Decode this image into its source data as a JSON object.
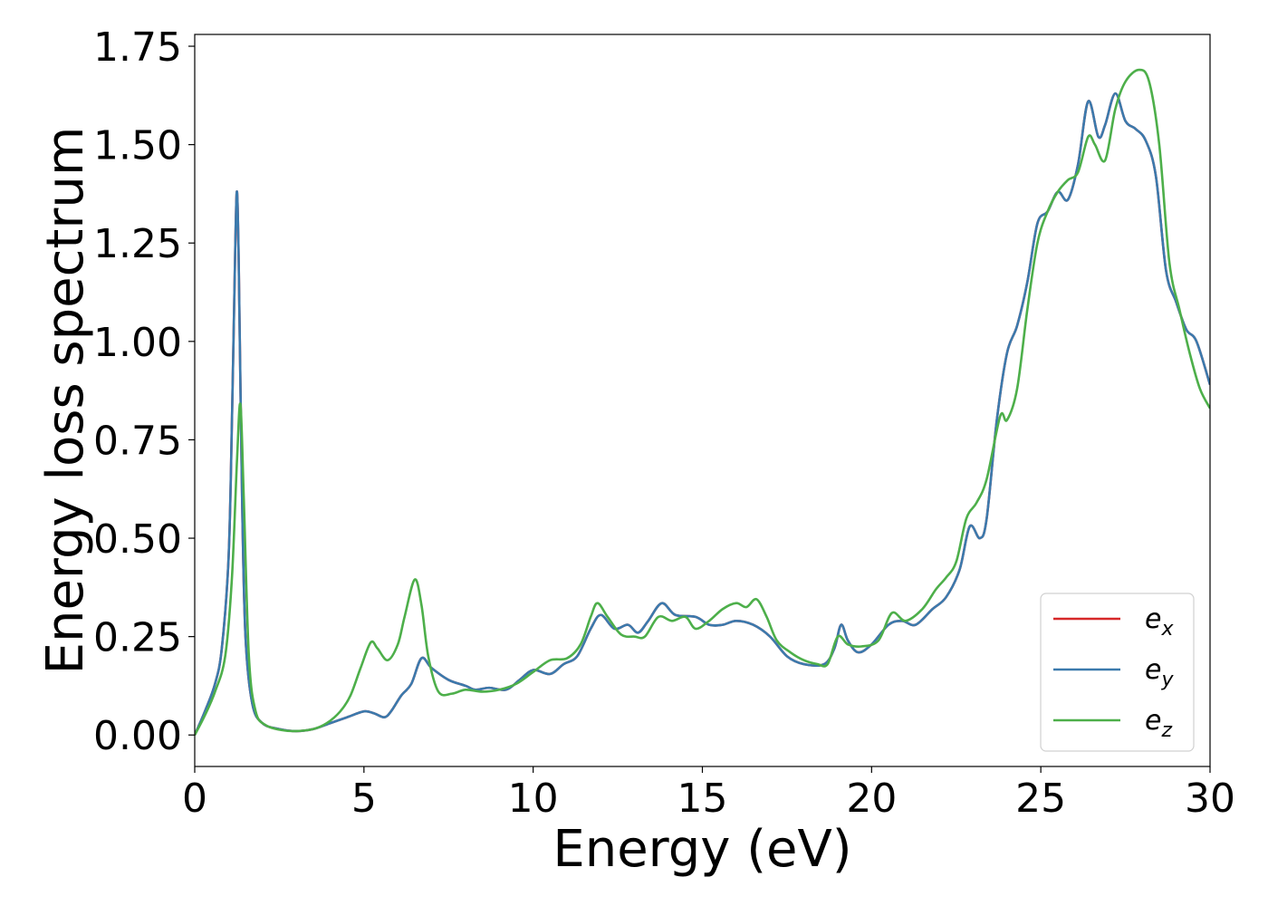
{
  "chart_data": {
    "type": "line",
    "title": "",
    "xlabel": "Energy (eV)",
    "ylabel": "Energy loss spectrum",
    "xlim": [
      0,
      30
    ],
    "ylim": [
      -0.08,
      1.78
    ],
    "xticks": [
      0,
      5,
      10,
      15,
      20,
      25,
      30
    ],
    "xtick_labels": [
      "0",
      "5",
      "10",
      "15",
      "20",
      "25",
      "30"
    ],
    "yticks": [
      0,
      0.25,
      0.5,
      0.75,
      1.0,
      1.25,
      1.5,
      1.75
    ],
    "ytick_labels": [
      "0.00",
      "0.25",
      "0.50",
      "0.75",
      "1.00",
      "1.25",
      "1.50",
      "1.75"
    ],
    "grid": false,
    "legend_position": "bottom-right",
    "series": [
      {
        "name": "e_x",
        "base": "e",
        "sub": "x",
        "color": "#d62728",
        "points": [
          [
            0,
            0.0
          ],
          [
            0.3,
            0.06
          ],
          [
            0.6,
            0.13
          ],
          [
            0.8,
            0.22
          ],
          [
            1.0,
            0.45
          ],
          [
            1.1,
            0.8
          ],
          [
            1.2,
            1.25
          ],
          [
            1.25,
            1.38
          ],
          [
            1.3,
            1.2
          ],
          [
            1.4,
            0.6
          ],
          [
            1.5,
            0.25
          ],
          [
            1.7,
            0.08
          ],
          [
            2.0,
            0.03
          ],
          [
            2.5,
            0.015
          ],
          [
            3.0,
            0.01
          ],
          [
            3.5,
            0.015
          ],
          [
            4.0,
            0.03
          ],
          [
            4.5,
            0.045
          ],
          [
            5.0,
            0.06
          ],
          [
            5.3,
            0.055
          ],
          [
            5.6,
            0.045
          ],
          [
            5.8,
            0.06
          ],
          [
            6.1,
            0.1
          ],
          [
            6.4,
            0.13
          ],
          [
            6.7,
            0.195
          ],
          [
            7.0,
            0.17
          ],
          [
            7.5,
            0.14
          ],
          [
            8.0,
            0.125
          ],
          [
            8.3,
            0.115
          ],
          [
            8.7,
            0.12
          ],
          [
            9.2,
            0.115
          ],
          [
            9.6,
            0.14
          ],
          [
            10.0,
            0.165
          ],
          [
            10.5,
            0.155
          ],
          [
            10.9,
            0.18
          ],
          [
            11.3,
            0.2
          ],
          [
            11.7,
            0.27
          ],
          [
            12.0,
            0.305
          ],
          [
            12.4,
            0.27
          ],
          [
            12.8,
            0.28
          ],
          [
            13.1,
            0.26
          ],
          [
            13.4,
            0.29
          ],
          [
            13.8,
            0.335
          ],
          [
            14.2,
            0.305
          ],
          [
            14.8,
            0.3
          ],
          [
            15.2,
            0.28
          ],
          [
            15.6,
            0.28
          ],
          [
            16.0,
            0.29
          ],
          [
            16.5,
            0.28
          ],
          [
            17.0,
            0.25
          ],
          [
            17.5,
            0.2
          ],
          [
            18.0,
            0.18
          ],
          [
            18.6,
            0.18
          ],
          [
            18.9,
            0.22
          ],
          [
            19.1,
            0.28
          ],
          [
            19.3,
            0.24
          ],
          [
            19.6,
            0.21
          ],
          [
            20.0,
            0.23
          ],
          [
            20.5,
            0.28
          ],
          [
            20.9,
            0.29
          ],
          [
            21.3,
            0.28
          ],
          [
            21.8,
            0.32
          ],
          [
            22.2,
            0.35
          ],
          [
            22.6,
            0.42
          ],
          [
            22.9,
            0.53
          ],
          [
            23.2,
            0.5
          ],
          [
            23.4,
            0.55
          ],
          [
            23.7,
            0.8
          ],
          [
            24.0,
            0.97
          ],
          [
            24.3,
            1.04
          ],
          [
            24.6,
            1.15
          ],
          [
            24.9,
            1.3
          ],
          [
            25.2,
            1.33
          ],
          [
            25.5,
            1.38
          ],
          [
            25.8,
            1.36
          ],
          [
            26.1,
            1.45
          ],
          [
            26.4,
            1.61
          ],
          [
            26.7,
            1.52
          ],
          [
            26.9,
            1.55
          ],
          [
            27.2,
            1.63
          ],
          [
            27.5,
            1.56
          ],
          [
            27.8,
            1.54
          ],
          [
            28.1,
            1.51
          ],
          [
            28.4,
            1.42
          ],
          [
            28.7,
            1.18
          ],
          [
            29.0,
            1.1
          ],
          [
            29.3,
            1.03
          ],
          [
            29.6,
            1.0
          ],
          [
            30.0,
            0.89
          ]
        ]
      },
      {
        "name": "e_y",
        "base": "e",
        "sub": "y",
        "color": "#3b7aad",
        "points": [
          [
            0,
            0.0
          ],
          [
            0.3,
            0.06
          ],
          [
            0.6,
            0.13
          ],
          [
            0.8,
            0.22
          ],
          [
            1.0,
            0.45
          ],
          [
            1.1,
            0.8
          ],
          [
            1.2,
            1.25
          ],
          [
            1.25,
            1.38
          ],
          [
            1.3,
            1.2
          ],
          [
            1.4,
            0.6
          ],
          [
            1.5,
            0.25
          ],
          [
            1.7,
            0.08
          ],
          [
            2.0,
            0.03
          ],
          [
            2.5,
            0.015
          ],
          [
            3.0,
            0.01
          ],
          [
            3.5,
            0.015
          ],
          [
            4.0,
            0.03
          ],
          [
            4.5,
            0.045
          ],
          [
            5.0,
            0.06
          ],
          [
            5.3,
            0.055
          ],
          [
            5.6,
            0.045
          ],
          [
            5.8,
            0.06
          ],
          [
            6.1,
            0.1
          ],
          [
            6.4,
            0.13
          ],
          [
            6.7,
            0.195
          ],
          [
            7.0,
            0.17
          ],
          [
            7.5,
            0.14
          ],
          [
            8.0,
            0.125
          ],
          [
            8.3,
            0.115
          ],
          [
            8.7,
            0.12
          ],
          [
            9.2,
            0.115
          ],
          [
            9.6,
            0.14
          ],
          [
            10.0,
            0.165
          ],
          [
            10.5,
            0.155
          ],
          [
            10.9,
            0.18
          ],
          [
            11.3,
            0.2
          ],
          [
            11.7,
            0.27
          ],
          [
            12.0,
            0.305
          ],
          [
            12.4,
            0.27
          ],
          [
            12.8,
            0.28
          ],
          [
            13.1,
            0.26
          ],
          [
            13.4,
            0.29
          ],
          [
            13.8,
            0.335
          ],
          [
            14.2,
            0.305
          ],
          [
            14.8,
            0.3
          ],
          [
            15.2,
            0.28
          ],
          [
            15.6,
            0.28
          ],
          [
            16.0,
            0.29
          ],
          [
            16.5,
            0.28
          ],
          [
            17.0,
            0.25
          ],
          [
            17.5,
            0.2
          ],
          [
            18.0,
            0.18
          ],
          [
            18.6,
            0.18
          ],
          [
            18.9,
            0.22
          ],
          [
            19.1,
            0.28
          ],
          [
            19.3,
            0.24
          ],
          [
            19.6,
            0.21
          ],
          [
            20.0,
            0.23
          ],
          [
            20.5,
            0.28
          ],
          [
            20.9,
            0.29
          ],
          [
            21.3,
            0.28
          ],
          [
            21.8,
            0.32
          ],
          [
            22.2,
            0.35
          ],
          [
            22.6,
            0.42
          ],
          [
            22.9,
            0.53
          ],
          [
            23.2,
            0.5
          ],
          [
            23.4,
            0.55
          ],
          [
            23.7,
            0.8
          ],
          [
            24.0,
            0.97
          ],
          [
            24.3,
            1.04
          ],
          [
            24.6,
            1.15
          ],
          [
            24.9,
            1.3
          ],
          [
            25.2,
            1.33
          ],
          [
            25.5,
            1.38
          ],
          [
            25.8,
            1.36
          ],
          [
            26.1,
            1.45
          ],
          [
            26.4,
            1.61
          ],
          [
            26.7,
            1.52
          ],
          [
            26.9,
            1.55
          ],
          [
            27.2,
            1.63
          ],
          [
            27.5,
            1.56
          ],
          [
            27.8,
            1.54
          ],
          [
            28.1,
            1.51
          ],
          [
            28.4,
            1.42
          ],
          [
            28.7,
            1.18
          ],
          [
            29.0,
            1.1
          ],
          [
            29.3,
            1.03
          ],
          [
            29.6,
            1.0
          ],
          [
            30.0,
            0.89
          ]
        ]
      },
      {
        "name": "e_z",
        "base": "e",
        "sub": "z",
        "color": "#4daf4a",
        "points": [
          [
            0,
            0.0
          ],
          [
            0.3,
            0.05
          ],
          [
            0.6,
            0.11
          ],
          [
            0.9,
            0.2
          ],
          [
            1.1,
            0.4
          ],
          [
            1.25,
            0.7
          ],
          [
            1.35,
            0.84
          ],
          [
            1.45,
            0.6
          ],
          [
            1.6,
            0.2
          ],
          [
            1.8,
            0.06
          ],
          [
            2.1,
            0.025
          ],
          [
            2.6,
            0.012
          ],
          [
            3.0,
            0.01
          ],
          [
            3.5,
            0.015
          ],
          [
            3.9,
            0.03
          ],
          [
            4.3,
            0.06
          ],
          [
            4.6,
            0.1
          ],
          [
            4.9,
            0.17
          ],
          [
            5.2,
            0.235
          ],
          [
            5.4,
            0.22
          ],
          [
            5.7,
            0.19
          ],
          [
            6.0,
            0.23
          ],
          [
            6.2,
            0.3
          ],
          [
            6.5,
            0.395
          ],
          [
            6.7,
            0.33
          ],
          [
            6.9,
            0.2
          ],
          [
            7.2,
            0.11
          ],
          [
            7.6,
            0.105
          ],
          [
            8.0,
            0.115
          ],
          [
            8.5,
            0.11
          ],
          [
            9.0,
            0.115
          ],
          [
            9.5,
            0.13
          ],
          [
            10.0,
            0.16
          ],
          [
            10.5,
            0.19
          ],
          [
            11.0,
            0.195
          ],
          [
            11.4,
            0.23
          ],
          [
            11.7,
            0.3
          ],
          [
            11.9,
            0.335
          ],
          [
            12.2,
            0.3
          ],
          [
            12.6,
            0.255
          ],
          [
            13.0,
            0.25
          ],
          [
            13.3,
            0.25
          ],
          [
            13.7,
            0.3
          ],
          [
            14.1,
            0.29
          ],
          [
            14.5,
            0.3
          ],
          [
            14.8,
            0.27
          ],
          [
            15.2,
            0.29
          ],
          [
            15.6,
            0.32
          ],
          [
            16.0,
            0.335
          ],
          [
            16.3,
            0.325
          ],
          [
            16.6,
            0.345
          ],
          [
            16.9,
            0.3
          ],
          [
            17.2,
            0.24
          ],
          [
            17.6,
            0.21
          ],
          [
            18.0,
            0.19
          ],
          [
            18.4,
            0.18
          ],
          [
            18.7,
            0.18
          ],
          [
            19.0,
            0.25
          ],
          [
            19.3,
            0.23
          ],
          [
            19.7,
            0.225
          ],
          [
            20.2,
            0.24
          ],
          [
            20.6,
            0.31
          ],
          [
            21.0,
            0.29
          ],
          [
            21.5,
            0.32
          ],
          [
            21.9,
            0.37
          ],
          [
            22.2,
            0.4
          ],
          [
            22.5,
            0.44
          ],
          [
            22.8,
            0.55
          ],
          [
            23.1,
            0.59
          ],
          [
            23.4,
            0.65
          ],
          [
            23.8,
            0.81
          ],
          [
            24.0,
            0.8
          ],
          [
            24.3,
            0.88
          ],
          [
            24.6,
            1.08
          ],
          [
            24.9,
            1.25
          ],
          [
            25.2,
            1.33
          ],
          [
            25.5,
            1.38
          ],
          [
            25.8,
            1.41
          ],
          [
            26.1,
            1.43
          ],
          [
            26.4,
            1.52
          ],
          [
            26.6,
            1.5
          ],
          [
            26.9,
            1.46
          ],
          [
            27.2,
            1.59
          ],
          [
            27.5,
            1.66
          ],
          [
            27.9,
            1.69
          ],
          [
            28.2,
            1.66
          ],
          [
            28.5,
            1.5
          ],
          [
            28.8,
            1.2
          ],
          [
            29.1,
            1.08
          ],
          [
            29.4,
            0.97
          ],
          [
            29.7,
            0.88
          ],
          [
            30.0,
            0.83
          ]
        ]
      }
    ]
  }
}
